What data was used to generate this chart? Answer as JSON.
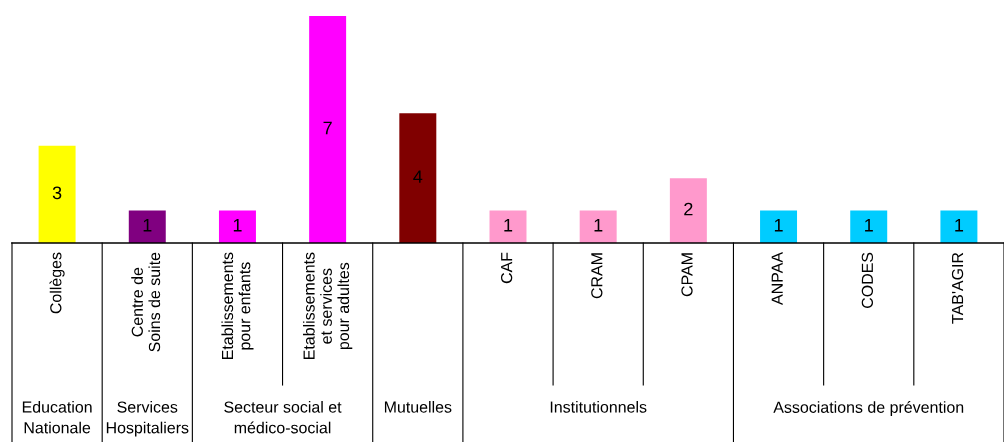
{
  "chart_data": {
    "type": "bar",
    "categories": [
      "Collèges",
      "Centre de\nSoins de suite",
      "Etablissements\npour enfants",
      "Etablissements\net services\npour adultes",
      null,
      "CAF",
      "CRAM",
      "CPAM",
      "ANPAA",
      "CODES",
      "TAB'AGIR"
    ],
    "values": [
      3,
      1,
      1,
      7,
      4,
      1,
      1,
      2,
      1,
      1,
      1
    ],
    "colors": [
      "#ffff00",
      "#800080",
      "#ff00ff",
      "#ff00ff",
      "#800000",
      "#ff99cc",
      "#ff99cc",
      "#ff99cc",
      "#00ccff",
      "#00ccff",
      "#00ccff"
    ],
    "data_labels": true,
    "annotations": [
      "Education\nNationale",
      "Services\nHospitaliers",
      "Secteur social et\nmédico-social",
      "Mutuelles",
      "Institutionnels",
      "Associations de prévention"
    ]
  }
}
